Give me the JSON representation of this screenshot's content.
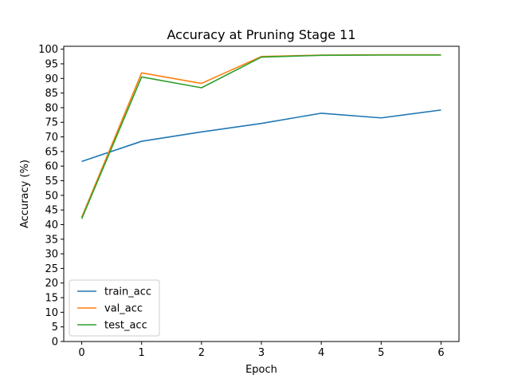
{
  "chart_data": {
    "type": "line",
    "title": "Accuracy at Pruning Stage 11",
    "xlabel": "Epoch",
    "ylabel": "Accuracy (%)",
    "x": [
      0,
      1,
      2,
      3,
      4,
      5,
      6
    ],
    "xlim": [
      -0.3,
      6.3
    ],
    "ylim": [
      0,
      101
    ],
    "xticks": [
      0,
      1,
      2,
      3,
      4,
      5,
      6
    ],
    "yticks": [
      0,
      5,
      10,
      15,
      20,
      25,
      30,
      35,
      40,
      45,
      50,
      55,
      60,
      65,
      70,
      75,
      80,
      85,
      90,
      95,
      100
    ],
    "grid": false,
    "legend_position": "lower-left",
    "series": [
      {
        "name": "train_acc",
        "color": "#1f77b4",
        "values": [
          61.6,
          68.5,
          71.7,
          74.6,
          78.1,
          76.5,
          79.2
        ]
      },
      {
        "name": "val_acc",
        "color": "#ff7f0e",
        "values": [
          42.5,
          91.9,
          88.3,
          97.5,
          98.0,
          98.1,
          98.1
        ]
      },
      {
        "name": "test_acc",
        "color": "#2ca02c",
        "values": [
          42.0,
          90.5,
          86.8,
          97.3,
          97.9,
          98.0,
          98.0
        ]
      }
    ]
  }
}
